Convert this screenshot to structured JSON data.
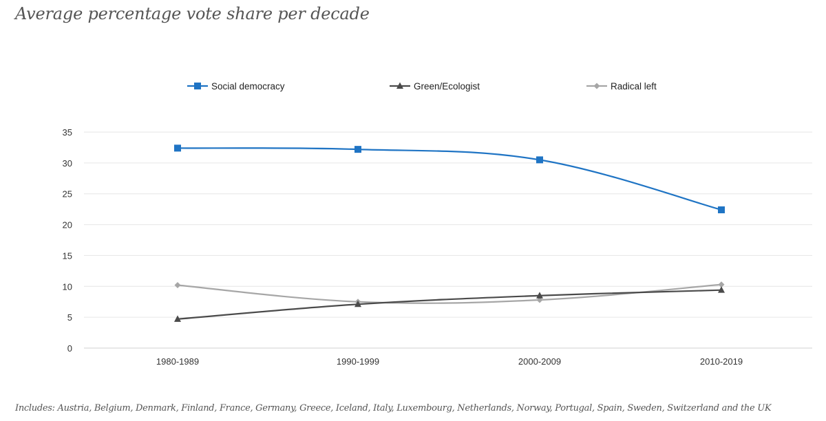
{
  "chart_data": {
    "type": "line",
    "title": "Average percentage vote share per decade",
    "categories": [
      "1980-1989",
      "1990-1999",
      "2000-2009",
      "2010-2019"
    ],
    "ylim": [
      0,
      35
    ],
    "yticks": [
      0,
      5,
      10,
      15,
      20,
      25,
      30,
      35
    ],
    "grid": true,
    "legend_position": "top",
    "series": [
      {
        "name": "Social democracy",
        "values": [
          32.4,
          32.2,
          30.5,
          22.4
        ],
        "color": "#1f74c4",
        "marker": "square"
      },
      {
        "name": "Green/Ecologist",
        "values": [
          4.7,
          7.1,
          8.5,
          9.4
        ],
        "color": "#4a4a4a",
        "marker": "triangle"
      },
      {
        "name": "Radical left",
        "values": [
          10.2,
          7.5,
          7.8,
          10.3
        ],
        "color": "#a6a6a6",
        "marker": "diamond"
      }
    ],
    "footnote": "Includes: Austria, Belgium, Denmark, Finland, France, Germany, Greece, Iceland, Italy, Luxembourg, Netherlands, Norway, Portugal, Spain, Sweden, Switzerland and the UK"
  }
}
